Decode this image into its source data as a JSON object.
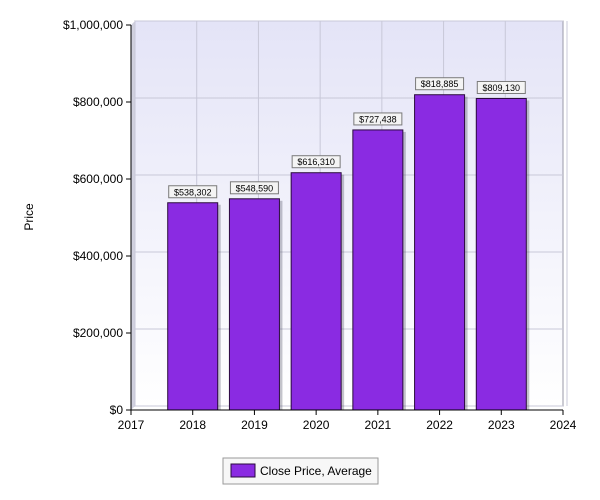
{
  "chart_data": {
    "type": "bar",
    "categories": [
      "2018",
      "2019",
      "2020",
      "2021",
      "2022",
      "2023"
    ],
    "x_ticks": [
      "2017",
      "2018",
      "2019",
      "2020",
      "2021",
      "2022",
      "2023",
      "2024"
    ],
    "x_range": [
      2017,
      2024
    ],
    "values": [
      538302,
      548590,
      616310,
      727438,
      818885,
      809130
    ],
    "data_labels": [
      "$538,302",
      "$548,590",
      "$616,310",
      "$727,438",
      "$818,885",
      "$809,130"
    ],
    "series": [
      {
        "name": "Close Price, Average",
        "values": [
          538302,
          548590,
          616310,
          727438,
          818885,
          809130
        ]
      }
    ],
    "title": "",
    "xlabel": "",
    "ylabel": "Price",
    "ylim": [
      0,
      1000000
    ],
    "y_ticks": [
      0,
      200000,
      400000,
      600000,
      800000,
      1000000
    ],
    "y_tick_labels": [
      "$0",
      "$200,000",
      "$400,000",
      "$600,000",
      "$800,000",
      "$1,000,000"
    ],
    "grid": true,
    "legend_position": "bottom-center",
    "colors": {
      "bar_fill": "#8A2BE2",
      "bar_stroke": "#2a0a3d",
      "plot_bg_top": "#e4e4f7",
      "plot_bg_bottom": "#ffffff",
      "grid": "#c8c8d8"
    }
  }
}
